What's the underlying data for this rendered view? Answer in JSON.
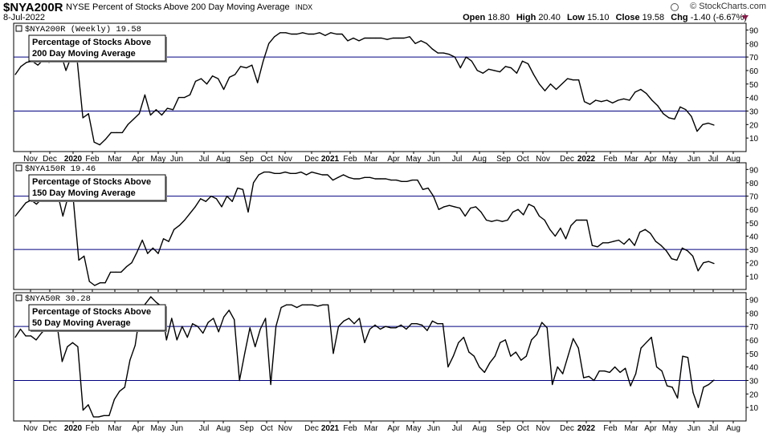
{
  "header": {
    "ticker": "$NYA200R",
    "description": "NYSE Percent of Stocks Above 200 Day Moving Average",
    "exchange": "INDX",
    "date": "8-Jul-2022",
    "copyright": "© StockCharts.com",
    "open_label": "Open",
    "open": "18.80",
    "high_label": "High",
    "high": "20.40",
    "low_label": "Low",
    "low": "15.10",
    "close_label": "Close",
    "close": "19.58",
    "chg_label": "Chg",
    "chg": "-1.40 (-6.67%)"
  },
  "colors": {
    "series": "#000000",
    "reference_lines": "#000080",
    "axis": "#000000",
    "background": "#ffffff",
    "down_arrow": "#8b1a4a"
  },
  "chart_data": [
    {
      "type": "line",
      "panel": "NYA200R",
      "series_label": "$NYA200R (Weekly) 19.58",
      "annotation_lines": [
        "Percentage of Stocks Above",
        "200 Day Moving Average"
      ],
      "ylim": [
        0,
        95
      ],
      "y_ticks": [
        10,
        20,
        30,
        40,
        50,
        60,
        70,
        80,
        90
      ],
      "reference_levels": [
        70,
        30
      ],
      "x_tick_labels": [
        "Nov",
        "Dec",
        "2020",
        "Feb",
        "Mar",
        "Apr",
        "May",
        "Jun",
        "Jul",
        "Aug",
        "Sep",
        "Oct",
        "Nov",
        "Dec",
        "2021",
        "Feb",
        "Mar",
        "Apr",
        "May",
        "Jun",
        "Jul",
        "Aug",
        "Sep",
        "Oct",
        "Nov",
        "Dec",
        "2022",
        "Feb",
        "Mar",
        "Apr",
        "May",
        "Jun",
        "Jul",
        "Aug"
      ],
      "bold_x_ticks": [
        "2020",
        "2021",
        "2022"
      ],
      "values": [
        57,
        63,
        66,
        67,
        64,
        68,
        66,
        70,
        74,
        60,
        71,
        67,
        25,
        28,
        7,
        5,
        9,
        14,
        14,
        14,
        20,
        24,
        28,
        42,
        27,
        31,
        27,
        32,
        31,
        40,
        40,
        42,
        52,
        54,
        50,
        56,
        54,
        46,
        55,
        57,
        63,
        62,
        64,
        51,
        67,
        80,
        85,
        88,
        88,
        87,
        87,
        88,
        87,
        87,
        88,
        86,
        88,
        87,
        87,
        82,
        84,
        82,
        84,
        84,
        84,
        84,
        83,
        84,
        84,
        84,
        85,
        80,
        82,
        80,
        76,
        73,
        73,
        72,
        70,
        62,
        70,
        67,
        60,
        58,
        61,
        60,
        59,
        63,
        62,
        58,
        67,
        65,
        57,
        50,
        45,
        50,
        46,
        50,
        54,
        53,
        53,
        37,
        35,
        38,
        37,
        38,
        36,
        38,
        39,
        38,
        44,
        46,
        43,
        38,
        34,
        28,
        25,
        24,
        33,
        31,
        26,
        15,
        20,
        21,
        19.58
      ]
    },
    {
      "type": "line",
      "panel": "NYA150R",
      "series_label": "$NYA150R 19.46",
      "annotation_lines": [
        "Percentage of Stocks Above",
        "150 Day Moving Average"
      ],
      "ylim": [
        0,
        95
      ],
      "y_ticks": [
        10,
        20,
        30,
        40,
        50,
        60,
        70,
        80,
        90
      ],
      "reference_levels": [
        70,
        30
      ],
      "values": [
        55,
        60,
        65,
        67,
        64,
        68,
        66,
        68,
        72,
        55,
        70,
        66,
        22,
        25,
        6,
        3,
        5,
        5,
        13,
        13,
        13,
        17,
        20,
        28,
        37,
        27,
        31,
        27,
        38,
        36,
        45,
        48,
        52,
        57,
        62,
        68,
        66,
        70,
        68,
        62,
        70,
        66,
        76,
        75,
        58,
        80,
        86,
        88,
        88,
        87,
        87,
        88,
        87,
        87,
        88,
        86,
        88,
        87,
        86,
        86,
        82,
        84,
        86,
        84,
        83,
        83,
        84,
        84,
        83,
        83,
        83,
        82,
        82,
        81,
        81,
        82,
        82,
        75,
        76,
        70,
        60,
        62,
        63,
        62,
        61,
        55,
        61,
        62,
        58,
        52,
        51,
        52,
        51,
        52,
        58,
        60,
        56,
        64,
        62,
        55,
        52,
        45,
        40,
        46,
        38,
        48,
        52,
        52,
        52,
        33,
        32,
        35,
        35,
        36,
        37,
        34,
        38,
        33,
        43,
        45,
        42,
        36,
        33,
        29,
        23,
        22,
        31,
        29,
        25,
        14,
        20,
        21,
        19.46
      ]
    },
    {
      "type": "line",
      "panel": "NYA50R",
      "series_label": "$NYA50R 30.28",
      "annotation_lines": [
        "Percentage of Stocks Above",
        "50 Day Moving Average"
      ],
      "ylim": [
        0,
        95
      ],
      "y_ticks": [
        10,
        20,
        30,
        40,
        50,
        60,
        70,
        80,
        90
      ],
      "reference_levels": [
        70,
        30
      ],
      "values": [
        62,
        68,
        63,
        63,
        60,
        65,
        69,
        68,
        72,
        44,
        55,
        58,
        55,
        8,
        12,
        3,
        3,
        4,
        4,
        16,
        22,
        25,
        45,
        56,
        82,
        87,
        92,
        88,
        85,
        60,
        76,
        60,
        70,
        62,
        72,
        70,
        65,
        73,
        76,
        66,
        77,
        82,
        75,
        30,
        50,
        69,
        55,
        68,
        76,
        27,
        70,
        84,
        86,
        86,
        84,
        86,
        86,
        86,
        85,
        86,
        86,
        50,
        70,
        74,
        76,
        72,
        76,
        58,
        68,
        71,
        68,
        70,
        69,
        69,
        71,
        68,
        72,
        72,
        71,
        67,
        74,
        72,
        72,
        40,
        48,
        58,
        62,
        51,
        48,
        40,
        36,
        43,
        48,
        58,
        60,
        48,
        51,
        45,
        48,
        60,
        64,
        73,
        69,
        27,
        40,
        35,
        48,
        61,
        54,
        32,
        33,
        30,
        37,
        37,
        36,
        40,
        36,
        39,
        26,
        35,
        54,
        58,
        62,
        40,
        37,
        26,
        25,
        17,
        48,
        47,
        21,
        10,
        25,
        27,
        30.28
      ]
    }
  ]
}
